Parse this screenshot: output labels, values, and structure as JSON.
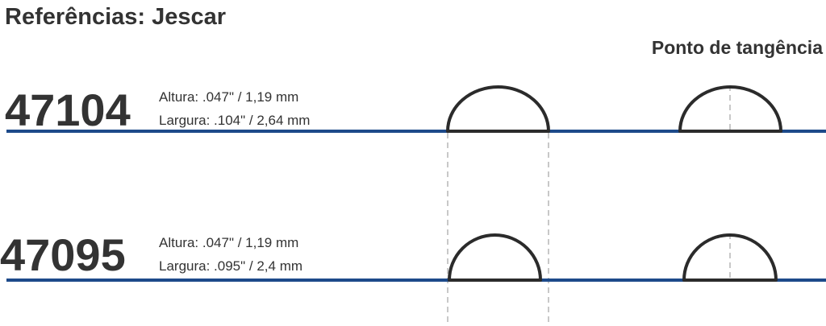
{
  "title": "Referências: Jescar",
  "header": "Ponto de tangência",
  "rows": [
    {
      "code": "47104",
      "height": "Altura: .047\" / 1,19 mm",
      "width": "Largura: .104\" / 2,64 mm"
    },
    {
      "code": "47095",
      "height": "Altura: .047\" / 1,19 mm",
      "width": "Largura: .095\" / 2,4 mm"
    }
  ]
}
